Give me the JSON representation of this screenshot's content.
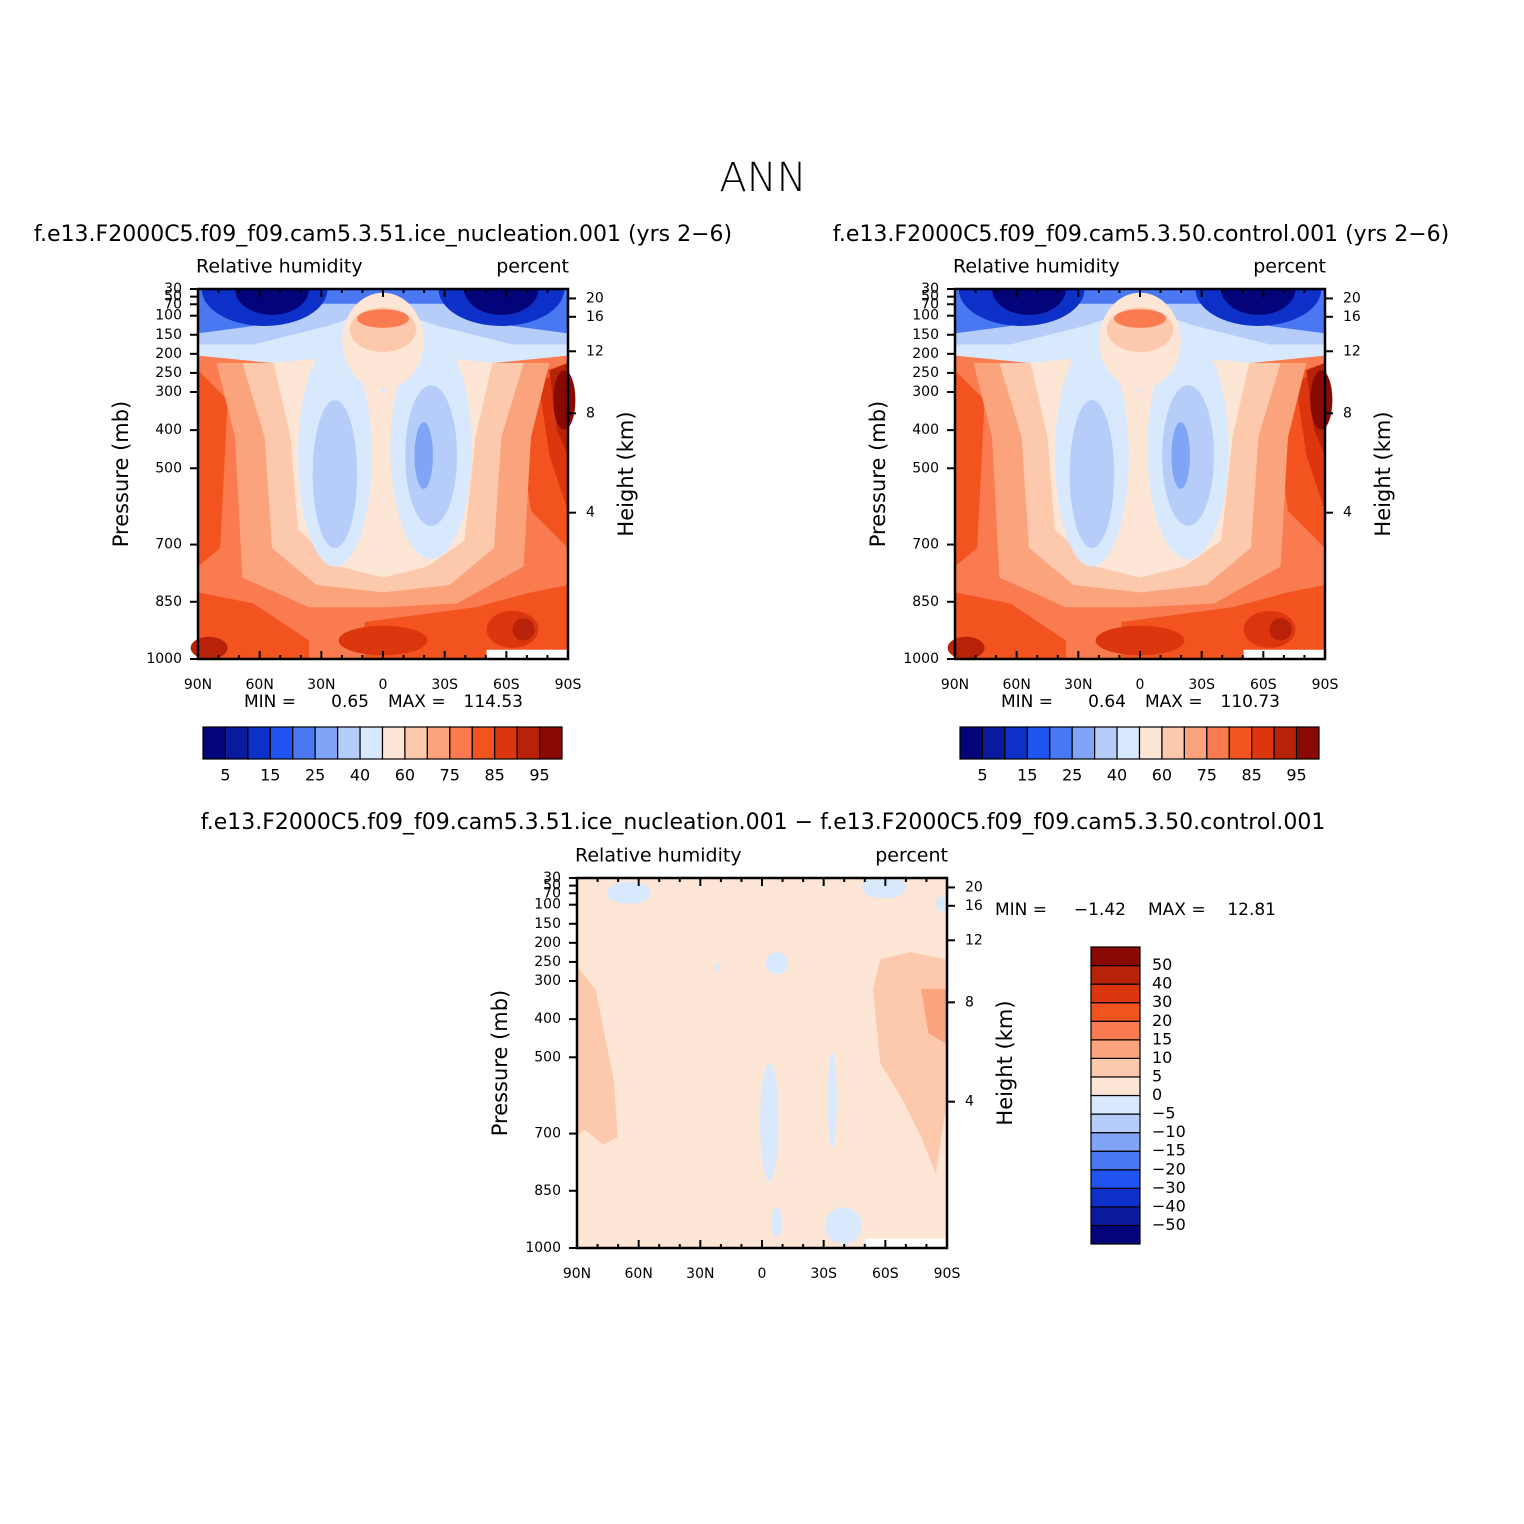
{
  "title": "ANN",
  "chart_data": [
    {
      "type": "contour",
      "title": "f.e13.F2000C5.f09_f09.cam5.3.51.ice_nucleation.001 (yrs 2−6)",
      "variable": "Relative humidity",
      "units": "percent",
      "ylabel": "Pressure (mb)",
      "y2label": "Height (km)",
      "xlim": [
        90,
        -90
      ],
      "xticks": [
        {
          "value": 90,
          "label": "90N"
        },
        {
          "value": 60,
          "label": "60N"
        },
        {
          "value": 30,
          "label": "30N"
        },
        0,
        {
          "value": -30,
          "label": "30S"
        },
        {
          "value": -60,
          "label": "60S"
        },
        {
          "value": -90,
          "label": "90S"
        }
      ],
      "ylim": [
        1000,
        30
      ],
      "yticks": [
        30,
        50,
        70,
        100,
        150,
        200,
        250,
        300,
        400,
        500,
        700,
        850,
        1000
      ],
      "y2ticks": [
        4,
        8,
        12,
        16,
        20
      ],
      "min_label": "MIN =",
      "min": 0.65,
      "max_label": "MAX =",
      "max": 114.53,
      "colorbar": {
        "orientation": "horizontal",
        "colors": [
          "#03037a",
          "#0a1a9c",
          "#0c30c8",
          "#2054f0",
          "#4a78f2",
          "#80a4f6",
          "#b6cdf9",
          "#d8e9fd",
          "#fde6d5",
          "#fcc9ac",
          "#fba37d",
          "#f97b4f",
          "#f2531f",
          "#dc360e",
          "#b82208",
          "#890a02"
        ],
        "ticks": [
          5,
          15,
          25,
          40,
          60,
          75,
          85,
          95
        ]
      }
    },
    {
      "type": "contour",
      "title": "f.e13.F2000C5.f09_f09.cam5.3.50.control.001 (yrs 2−6)",
      "variable": "Relative humidity",
      "units": "percent",
      "ylabel": "Pressure (mb)",
      "y2label": "Height (km)",
      "xlim": [
        90,
        -90
      ],
      "xticks": [
        {
          "value": 90,
          "label": "90N"
        },
        {
          "value": 60,
          "label": "60N"
        },
        {
          "value": 30,
          "label": "30N"
        },
        0,
        {
          "value": -30,
          "label": "30S"
        },
        {
          "value": -60,
          "label": "60S"
        },
        {
          "value": -90,
          "label": "90S"
        }
      ],
      "ylim": [
        1000,
        30
      ],
      "yticks": [
        30,
        50,
        70,
        100,
        150,
        200,
        250,
        300,
        400,
        500,
        700,
        850,
        1000
      ],
      "y2ticks": [
        4,
        8,
        12,
        16,
        20
      ],
      "min_label": "MIN =",
      "min": 0.64,
      "max_label": "MAX =",
      "max": 110.73,
      "colorbar": {
        "orientation": "horizontal",
        "colors": [
          "#03037a",
          "#0a1a9c",
          "#0c30c8",
          "#2054f0",
          "#4a78f2",
          "#80a4f6",
          "#b6cdf9",
          "#d8e9fd",
          "#fde6d5",
          "#fcc9ac",
          "#fba37d",
          "#f97b4f",
          "#f2531f",
          "#dc360e",
          "#b82208",
          "#890a02"
        ],
        "ticks": [
          5,
          15,
          25,
          40,
          60,
          75,
          85,
          95
        ]
      }
    },
    {
      "type": "contour",
      "title": "f.e13.F2000C5.f09_f09.cam5.3.51.ice_nucleation.001 − f.e13.F2000C5.f09_f09.cam5.3.50.control.001",
      "variable": "Relative humidity",
      "units": "percent",
      "ylabel": "Pressure (mb)",
      "y2label": "Height (km)",
      "xlim": [
        90,
        -90
      ],
      "xticks": [
        {
          "value": 90,
          "label": "90N"
        },
        {
          "value": 60,
          "label": "60N"
        },
        {
          "value": 30,
          "label": "30N"
        },
        0,
        {
          "value": -30,
          "label": "30S"
        },
        {
          "value": -60,
          "label": "60S"
        },
        {
          "value": -90,
          "label": "90S"
        }
      ],
      "ylim": [
        1000,
        30
      ],
      "yticks": [
        30,
        50,
        70,
        100,
        150,
        200,
        250,
        300,
        400,
        500,
        700,
        850,
        1000
      ],
      "y2ticks": [
        4,
        8,
        12,
        16,
        20
      ],
      "min_label": "MIN =",
      "min": {
        "value": -1.42,
        "label": "−1.42"
      },
      "max_label": "MAX =",
      "max": 12.81,
      "colorbar": {
        "orientation": "vertical",
        "colors": [
          "#03037a",
          "#0a1a9c",
          "#0c30c8",
          "#2054f0",
          "#4a78f2",
          "#80a4f6",
          "#b6cdf9",
          "#d8e9fd",
          "#fde6d5",
          "#fcc9ac",
          "#fba37d",
          "#f97b4f",
          "#f2531f",
          "#dc360e",
          "#b82208",
          "#890a02"
        ],
        "ticks": [
          {
            "value": -50,
            "label": "−50"
          },
          {
            "value": -40,
            "label": "−40"
          },
          {
            "value": -30,
            "label": "−30"
          },
          {
            "value": -20,
            "label": "−20"
          },
          {
            "value": -15,
            "label": "−15"
          },
          {
            "value": -10,
            "label": "−10"
          },
          {
            "value": -5,
            "label": "−5"
          },
          0,
          5,
          10,
          15,
          20,
          30,
          40,
          50
        ]
      }
    }
  ]
}
